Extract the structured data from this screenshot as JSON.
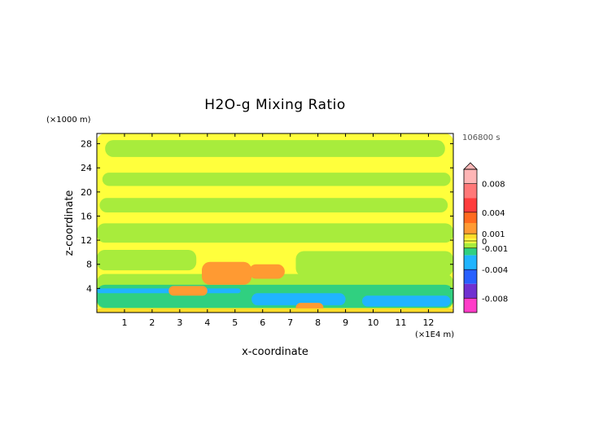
{
  "chart_data": {
    "type": "heatmap",
    "title": "H2O-g Mixing Ratio",
    "xlabel": "x-coordinate",
    "ylabel": "z-coordinate",
    "x_unit": "(×1E4 m)",
    "y_unit": "(×1000 m)",
    "time_label": "106800 s",
    "xlim": [
      0,
      12.9
    ],
    "ylim": [
      0,
      29.7
    ],
    "x_ticks": [
      1,
      2,
      3,
      4,
      5,
      6,
      7,
      8,
      9,
      10,
      11,
      12
    ],
    "y_ticks": [
      4,
      8,
      12,
      16,
      20,
      24,
      28
    ],
    "colorbar": {
      "tick_labels": [
        {
          "label": "0.008",
          "value": 0.008
        },
        {
          "label": "0.004",
          "value": 0.004
        },
        {
          "label": "0.001",
          "value": 0.001
        },
        {
          "label": "0",
          "value": 0
        },
        {
          "label": "-0.001",
          "value": -0.001
        },
        {
          "label": "-0.004",
          "value": -0.004
        },
        {
          "label": "-0.008",
          "value": -0.008
        }
      ],
      "range": [
        -0.01,
        0.01
      ],
      "bins": [
        {
          "from": 0.008,
          "to": 0.01,
          "color": "#ffb6b6"
        },
        {
          "from": 0.006,
          "to": 0.008,
          "color": "#ff7878"
        },
        {
          "from": 0.004,
          "to": 0.006,
          "color": "#ff3c3c"
        },
        {
          "from": 0.0025,
          "to": 0.004,
          "color": "#ff6a1e"
        },
        {
          "from": 0.001,
          "to": 0.0025,
          "color": "#ff9a32"
        },
        {
          "from": 0.0003,
          "to": 0.001,
          "color": "#ffdc2a"
        },
        {
          "from": -0.0003,
          "to": 0.0003,
          "color": "#ffff3c"
        },
        {
          "from": -0.001,
          "to": -0.0003,
          "color": "#a8ec3c"
        },
        {
          "from": -0.002,
          "to": -0.001,
          "color": "#30d080"
        },
        {
          "from": -0.004,
          "to": -0.002,
          "color": "#20b4ff"
        },
        {
          "from": -0.006,
          "to": -0.004,
          "color": "#2860ff"
        },
        {
          "from": -0.008,
          "to": -0.006,
          "color": "#7030d0"
        },
        {
          "from": -0.01,
          "to": -0.008,
          "color": "#ff3cc8"
        }
      ]
    },
    "regions": [
      {
        "level": "near-zero",
        "x": [
          0,
          12.9
        ],
        "z": [
          0,
          29.7
        ],
        "color": "#ffff3c"
      },
      {
        "level": "slightly negative",
        "x": [
          0.3,
          12.6
        ],
        "z": [
          25.8,
          28.6
        ],
        "color": "#a8ec3c"
      },
      {
        "level": "slightly negative",
        "x": [
          0.2,
          12.8
        ],
        "z": [
          21.0,
          23.2
        ],
        "color": "#a8ec3c"
      },
      {
        "level": "slightly negative",
        "x": [
          0.1,
          12.7
        ],
        "z": [
          16.6,
          19.0
        ],
        "color": "#a8ec3c"
      },
      {
        "level": "slightly negative",
        "x": [
          0.0,
          12.9
        ],
        "z": [
          11.6,
          14.8
        ],
        "color": "#a8ec3c"
      },
      {
        "level": "slightly negative",
        "x": [
          0.0,
          3.6
        ],
        "z": [
          7.0,
          10.4
        ],
        "color": "#a8ec3c"
      },
      {
        "level": "slightly negative",
        "x": [
          7.2,
          12.9
        ],
        "z": [
          6.0,
          10.2
        ],
        "color": "#a8ec3c"
      },
      {
        "level": "slightly negative",
        "x": [
          0.0,
          12.9
        ],
        "z": [
          0.6,
          6.4
        ],
        "color": "#a8ec3c"
      },
      {
        "level": "negative",
        "x": [
          0.0,
          12.9
        ],
        "z": [
          0.8,
          4.6
        ],
        "color": "#30d080"
      },
      {
        "level": "strongly negative",
        "x": [
          0.0,
          5.2
        ],
        "z": [
          3.2,
          4.0
        ],
        "color": "#20b4ff"
      },
      {
        "level": "strongly negative",
        "x": [
          5.6,
          9.0
        ],
        "z": [
          1.2,
          3.2
        ],
        "color": "#20b4ff"
      },
      {
        "level": "strongly negative",
        "x": [
          9.6,
          12.8
        ],
        "z": [
          1.0,
          2.8
        ],
        "color": "#20b4ff"
      },
      {
        "level": "positive",
        "x": [
          2.6,
          4.0
        ],
        "z": [
          2.8,
          4.4
        ],
        "color": "#ff9a32"
      },
      {
        "level": "positive",
        "x": [
          3.8,
          5.6
        ],
        "z": [
          4.6,
          8.4
        ],
        "color": "#ff9a32"
      },
      {
        "level": "positive",
        "x": [
          5.5,
          6.8
        ],
        "z": [
          5.6,
          8.0
        ],
        "color": "#ff9a32"
      },
      {
        "level": "positive",
        "x": [
          7.2,
          8.2
        ],
        "z": [
          0.0,
          1.6
        ],
        "color": "#ff9a32"
      },
      {
        "level": "surface",
        "x": [
          0.0,
          12.9
        ],
        "z": [
          0.0,
          0.7
        ],
        "color": "#ffdc2a"
      }
    ]
  }
}
